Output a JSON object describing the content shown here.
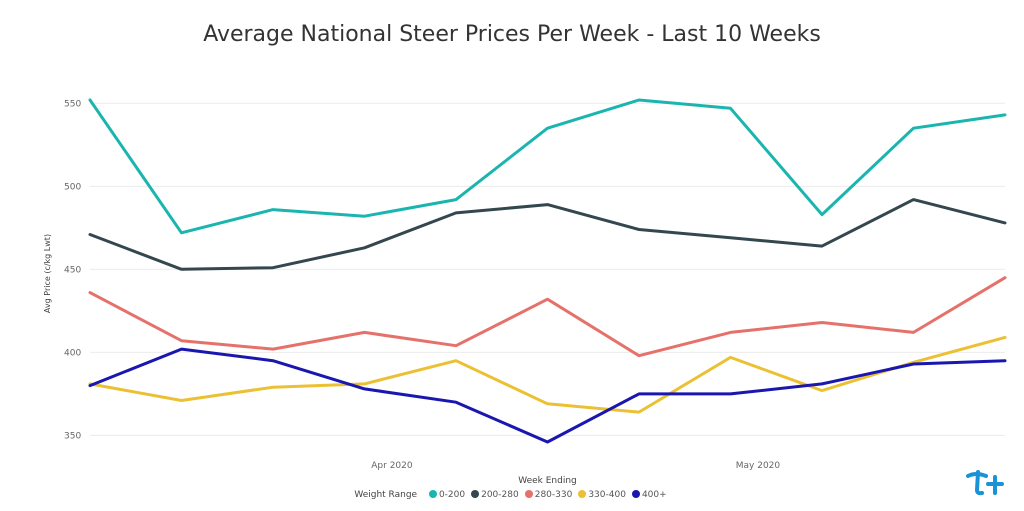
{
  "chart_data": {
    "type": "line",
    "title": "Average National Steer Prices Per Week - Last 10 Weeks",
    "xlabel": "Week Ending",
    "ylabel": "Avg Price (c/kg Lwt)",
    "x_tick_labels": [
      "Apr 2020",
      "May 2020"
    ],
    "ylim": [
      340,
      555
    ],
    "y_ticks": [
      350,
      400,
      450,
      500,
      550
    ],
    "grid": true,
    "legend_position": "bottom",
    "legend_title": "Weight Range",
    "series": [
      {
        "name": "0-200",
        "color": "#1bb5b0",
        "values": [
          552,
          472,
          486,
          482,
          492,
          535,
          552,
          547,
          483,
          535,
          543
        ]
      },
      {
        "name": "200-280",
        "color": "#34474f",
        "values": [
          471,
          450,
          451,
          463,
          484,
          489,
          474,
          469,
          464,
          492,
          478
        ]
      },
      {
        "name": "280-330",
        "color": "#e5716a",
        "values": [
          436,
          407,
          402,
          412,
          404,
          432,
          398,
          412,
          418,
          412,
          445
        ]
      },
      {
        "name": "330-400",
        "color": "#ebc133",
        "values": [
          381,
          371,
          379,
          381,
          395,
          369,
          364,
          397,
          377,
          394,
          409
        ]
      },
      {
        "name": "400+",
        "color": "#1a17b0",
        "values": [
          380,
          402,
          395,
          378,
          370,
          346,
          375,
          375,
          381,
          393,
          395
        ]
      }
    ]
  }
}
